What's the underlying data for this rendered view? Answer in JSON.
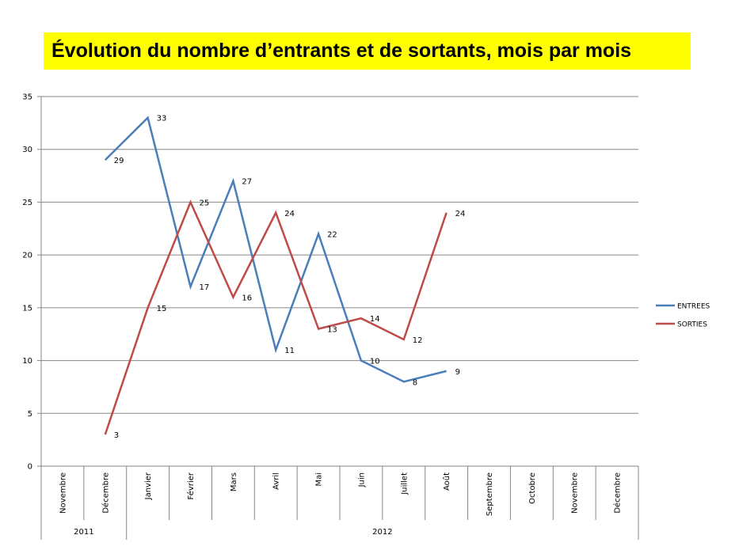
{
  "page": {
    "title": "Évolution du nombre d’entrants et de sortants, mois par mois"
  },
  "chart_data": {
    "type": "line",
    "title": "Évolution du nombre d’entrants et de sortants, mois par mois",
    "xlabel": "",
    "ylabel": "",
    "ylim": [
      0,
      35
    ],
    "yticks": [
      0,
      5,
      10,
      15,
      20,
      25,
      30,
      35
    ],
    "grid": true,
    "legend_position": "right",
    "categories": [
      "Novembre",
      "Décembre",
      "Janvier",
      "Février",
      "Mars",
      "Avril",
      "Mai",
      "Juin",
      "Juillet",
      "Août",
      "Septembre",
      "Octobre",
      "Novembre",
      "Décembre"
    ],
    "year_groups": [
      {
        "label": "2011",
        "count": 2
      },
      {
        "label": "2012",
        "count": 12
      }
    ],
    "series": [
      {
        "name": "ENTREES",
        "color": "#4a7ebb",
        "values": [
          null,
          29,
          33,
          17,
          27,
          11,
          22,
          10,
          8,
          9,
          null,
          null,
          null,
          null
        ]
      },
      {
        "name": "SORTIES",
        "color": "#be4b48",
        "values": [
          null,
          3,
          15,
          25,
          16,
          24,
          13,
          14,
          12,
          24,
          null,
          null,
          null,
          null
        ]
      }
    ]
  }
}
